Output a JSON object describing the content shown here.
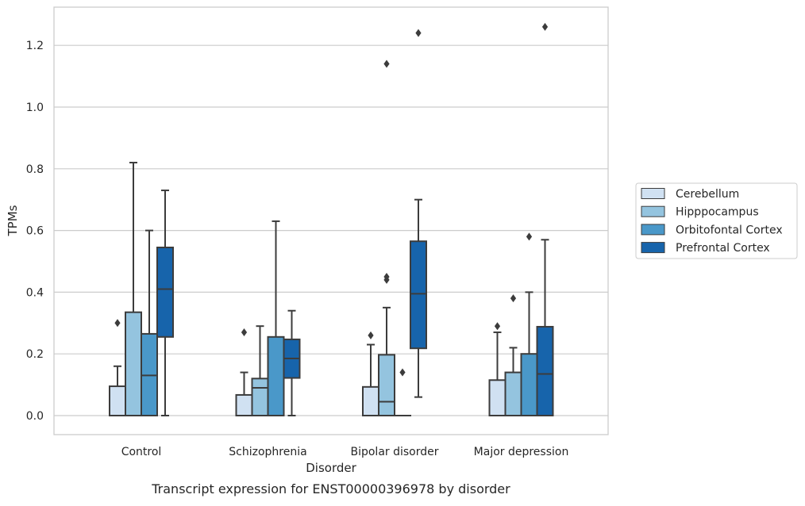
{
  "chart_data": {
    "type": "box",
    "caption": "Transcript expression for ENST00000396978 by disorder",
    "xlabel": "Disorder",
    "ylabel": "TPMs",
    "ylim": [
      -0.06,
      1.33
    ],
    "yticks": [
      0.0,
      0.2,
      0.4,
      0.6,
      0.8,
      1.0,
      1.2
    ],
    "ytick_labels": [
      "0.0",
      "0.2",
      "0.4",
      "0.6",
      "0.8",
      "1.0",
      "1.2"
    ],
    "grid": true,
    "legend_position": "right",
    "categories": [
      "Control",
      "Schizophrenia",
      "Bipolar disorder",
      "Major depression"
    ],
    "series": [
      {
        "name": "Cerebellum",
        "color": "#d0e1f2",
        "boxes": [
          {
            "q1": 0.0,
            "median": 0.0,
            "q3": 0.095,
            "whisker_low": 0.0,
            "whisker_high": 0.16,
            "outliers": [
              0.3
            ]
          },
          {
            "q1": 0.0,
            "median": 0.0,
            "q3": 0.067,
            "whisker_low": 0.0,
            "whisker_high": 0.14,
            "outliers": [
              0.27
            ]
          },
          {
            "q1": 0.0,
            "median": 0.0,
            "q3": 0.093,
            "whisker_low": 0.0,
            "whisker_high": 0.23,
            "outliers": [
              0.26
            ]
          },
          {
            "q1": 0.0,
            "median": 0.0,
            "q3": 0.115,
            "whisker_low": 0.0,
            "whisker_high": 0.27,
            "outliers": [
              0.29
            ]
          }
        ]
      },
      {
        "name": "Hipppocampus",
        "color": "#94c4df",
        "boxes": [
          {
            "q1": 0.0,
            "median": 0.0,
            "q3": 0.335,
            "whisker_low": 0.0,
            "whisker_high": 0.82,
            "outliers": []
          },
          {
            "q1": 0.0,
            "median": 0.09,
            "q3": 0.12,
            "whisker_low": 0.0,
            "whisker_high": 0.29,
            "outliers": []
          },
          {
            "q1": 0.0,
            "median": 0.045,
            "q3": 0.197,
            "whisker_low": 0.0,
            "whisker_high": 0.35,
            "outliers": [
              0.44,
              0.45,
              1.14
            ]
          },
          {
            "q1": 0.0,
            "median": 0.0,
            "q3": 0.14,
            "whisker_low": 0.0,
            "whisker_high": 0.22,
            "outliers": [
              0.38
            ]
          }
        ]
      },
      {
        "name": "Orbitofontal Cortex",
        "color": "#4a98c9",
        "boxes": [
          {
            "q1": 0.0,
            "median": 0.13,
            "q3": 0.265,
            "whisker_low": 0.0,
            "whisker_high": 0.6,
            "outliers": []
          },
          {
            "q1": 0.0,
            "median": 0.0,
            "q3": 0.255,
            "whisker_low": 0.0,
            "whisker_high": 0.63,
            "outliers": []
          },
          {
            "q1": 0.0,
            "median": 0.0,
            "q3": 0.0,
            "whisker_low": 0.0,
            "whisker_high": 0.0,
            "outliers": [
              0.14
            ]
          },
          {
            "q1": 0.0,
            "median": 0.0,
            "q3": 0.2,
            "whisker_low": 0.0,
            "whisker_high": 0.4,
            "outliers": [
              0.58
            ]
          }
        ]
      },
      {
        "name": "Prefrontal Cortex",
        "color": "#1764ab",
        "boxes": [
          {
            "q1": 0.255,
            "median": 0.41,
            "q3": 0.545,
            "whisker_low": 0.0,
            "whisker_high": 0.73,
            "outliers": []
          },
          {
            "q1": 0.122,
            "median": 0.185,
            "q3": 0.247,
            "whisker_low": 0.0,
            "whisker_high": 0.34,
            "outliers": []
          },
          {
            "q1": 0.218,
            "median": 0.395,
            "q3": 0.565,
            "whisker_low": 0.06,
            "whisker_high": 0.7,
            "outliers": [
              1.24
            ]
          },
          {
            "q1": 0.0,
            "median": 0.135,
            "q3": 0.288,
            "whisker_low": 0.0,
            "whisker_high": 0.57,
            "outliers": [
              1.26
            ]
          }
        ]
      }
    ]
  }
}
